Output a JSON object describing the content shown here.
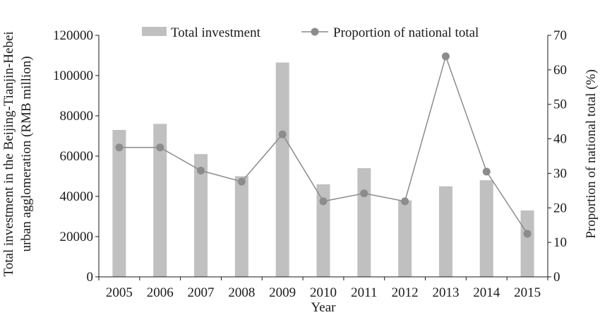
{
  "chart_data": {
    "type": "bar",
    "categories": [
      "2005",
      "2006",
      "2007",
      "2008",
      "2009",
      "2010",
      "2011",
      "2012",
      "2013",
      "2014",
      "2015"
    ],
    "series": [
      {
        "name": "Total investment",
        "type": "bar",
        "axis": "left",
        "color": "#c0c0c0",
        "values": [
          73000,
          76000,
          61000,
          50000,
          106500,
          46000,
          54000,
          38000,
          45000,
          48000,
          33000
        ]
      },
      {
        "name": "Proportion of national total",
        "type": "line",
        "axis": "right",
        "color": "#8c8c8c",
        "values": [
          37.5,
          37.5,
          30.8,
          27.6,
          41.3,
          21.9,
          24.2,
          21.9,
          63.9,
          30.5,
          12.5
        ]
      }
    ],
    "xlabel": "Year",
    "ylabel_left": "Total investment in the Beijing-Tianjin-Hebei urban agglomeration (RMB million)",
    "ylabel_left_lines": [
      "Total investment in the Beijing-Tianjin-Hebei",
      "urban agglomeration (RMB million)"
    ],
    "ylabel_right": "Proportion of national total (%)",
    "ylim_left": [
      0,
      120000
    ],
    "yticks_left": [
      0,
      20000,
      40000,
      60000,
      80000,
      100000,
      120000
    ],
    "ylim_right": [
      0,
      70
    ],
    "yticks_right": [
      0,
      10,
      20,
      30,
      40,
      50,
      60,
      70
    ],
    "grid": false,
    "legend_position": "top"
  }
}
